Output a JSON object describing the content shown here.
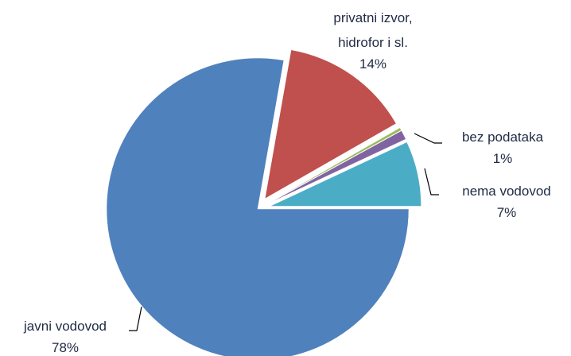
{
  "chart_data": {
    "type": "pie",
    "title": "",
    "slices": [
      {
        "label": "javni vodovod",
        "value": 78,
        "value_label": "78%",
        "color": "#4f81bd",
        "exploded": false
      },
      {
        "label": "privatni izvor, hidrofor i sl.",
        "label_lines": [
          "privatni izvor,",
          "hidrofor i sl."
        ],
        "value": 14,
        "value_label": "14%",
        "color": "#c0504d",
        "exploded": true
      },
      {
        "label": "",
        "value": 0.3,
        "value_label": "",
        "color": "#9bbb59",
        "exploded": true
      },
      {
        "label": "bez podataka",
        "value": 1,
        "value_label": "1%",
        "color": "#8064a2",
        "exploded": true
      },
      {
        "label": "nema vodovod",
        "value": 7,
        "value_label": "7%",
        "color": "#4bacc6",
        "exploded": true
      }
    ],
    "legend": "none"
  }
}
